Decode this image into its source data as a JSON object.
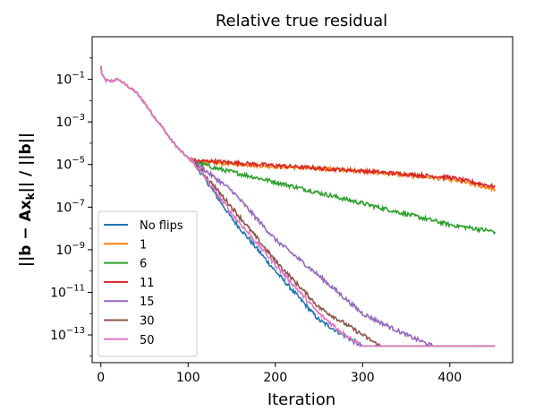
{
  "chart_data": {
    "type": "line",
    "title": "Relative true residual",
    "xlabel": "Iteration",
    "ylabel": "||b − Ax_k|| / ||b||",
    "ylabel_parts": {
      "pre": "||",
      "b": "b",
      "minus": " − ",
      "A": "A",
      "x": "x",
      "sub": "k",
      "post": "|| / ||",
      "b2": "b",
      "end": "||"
    },
    "x_scale": "linear",
    "y_scale": "log",
    "xlim": [
      -10,
      472
    ],
    "ylim": [
      5e-15,
      10
    ],
    "x_ticks": [
      0,
      100,
      200,
      300,
      400
    ],
    "y_ticks": [
      {
        "value": 1e-13,
        "base": "10",
        "exp": "−13"
      },
      {
        "value": 1e-11,
        "base": "10",
        "exp": "−11"
      },
      {
        "value": 1e-09,
        "base": "10",
        "exp": "−9"
      },
      {
        "value": 1e-07,
        "base": "10",
        "exp": "−7"
      },
      {
        "value": 1e-05,
        "base": "10",
        "exp": "−5"
      },
      {
        "value": 0.001,
        "base": "10",
        "exp": "−3"
      },
      {
        "value": 0.1,
        "base": "10",
        "exp": "−1"
      }
    ],
    "grid": false,
    "legend_position": "lower-left",
    "common_prefix": [
      [
        0,
        0.4
      ],
      [
        1,
        0.2
      ],
      [
        3,
        0.12
      ],
      [
        6,
        0.09
      ],
      [
        10,
        0.08
      ],
      [
        15,
        0.09
      ],
      [
        20,
        0.1
      ],
      [
        25,
        0.07
      ],
      [
        30,
        0.05
      ],
      [
        40,
        0.025
      ],
      [
        50,
        0.008
      ],
      [
        60,
        0.002
      ],
      [
        70,
        0.0006
      ],
      [
        80,
        0.00015
      ],
      [
        90,
        5e-05
      ],
      [
        100,
        2e-05
      ],
      [
        105,
        1.5e-05
      ]
    ],
    "series": [
      {
        "name": "No flips",
        "color": "#1f77b4",
        "flip": 0,
        "points": [
          [
            105,
            1.5e-05
          ],
          [
            150,
            3e-08
          ],
          [
            200,
            1e-10
          ],
          [
            250,
            5e-13
          ],
          [
            290,
            5e-14
          ],
          [
            300,
            3e-14
          ],
          [
            452,
            3e-14
          ]
        ]
      },
      {
        "name": "1",
        "color": "#ff7f0e",
        "flip": 1,
        "points": [
          [
            105,
            1.5e-05
          ],
          [
            130,
            1.2e-05
          ],
          [
            200,
            8e-06
          ],
          [
            300,
            5e-06
          ],
          [
            400,
            2e-06
          ],
          [
            452,
            7e-07
          ]
        ]
      },
      {
        "name": "6",
        "color": "#2ca02c",
        "flip": 6,
        "points": [
          [
            105,
            1.5e-05
          ],
          [
            130,
            7e-06
          ],
          [
            200,
            1.5e-06
          ],
          [
            300,
            1.5e-07
          ],
          [
            400,
            1.5e-08
          ],
          [
            452,
            7e-09
          ]
        ]
      },
      {
        "name": "11",
        "color": "#d62728",
        "flip": 11,
        "points": [
          [
            105,
            1.5e-05
          ],
          [
            130,
            1.4e-05
          ],
          [
            200,
            9e-06
          ],
          [
            300,
            5e-06
          ],
          [
            400,
            2.5e-06
          ],
          [
            452,
            9e-07
          ]
        ]
      },
      {
        "name": "15",
        "color": "#9467bd",
        "flip": 15,
        "points": [
          [
            105,
            1.5e-05
          ],
          [
            150,
            6e-07
          ],
          [
            200,
            3e-09
          ],
          [
            250,
            6e-11
          ],
          [
            300,
            1e-12
          ],
          [
            350,
            1e-13
          ],
          [
            380,
            3e-14
          ],
          [
            452,
            3e-14
          ]
        ]
      },
      {
        "name": "30",
        "color": "#8c564b",
        "flip": 30,
        "points": [
          [
            105,
            1.5e-05
          ],
          [
            150,
            1e-07
          ],
          [
            200,
            3e-10
          ],
          [
            250,
            2e-12
          ],
          [
            300,
            1e-13
          ],
          [
            320,
            3e-14
          ],
          [
            452,
            3e-14
          ]
        ]
      },
      {
        "name": "50",
        "color": "#e377c2",
        "flip": 50,
        "points": [
          [
            105,
            1.5e-05
          ],
          [
            150,
            5e-08
          ],
          [
            200,
            2e-10
          ],
          [
            250,
            1e-12
          ],
          [
            280,
            1e-13
          ],
          [
            300,
            3e-14
          ],
          [
            452,
            3e-14
          ]
        ]
      }
    ]
  }
}
